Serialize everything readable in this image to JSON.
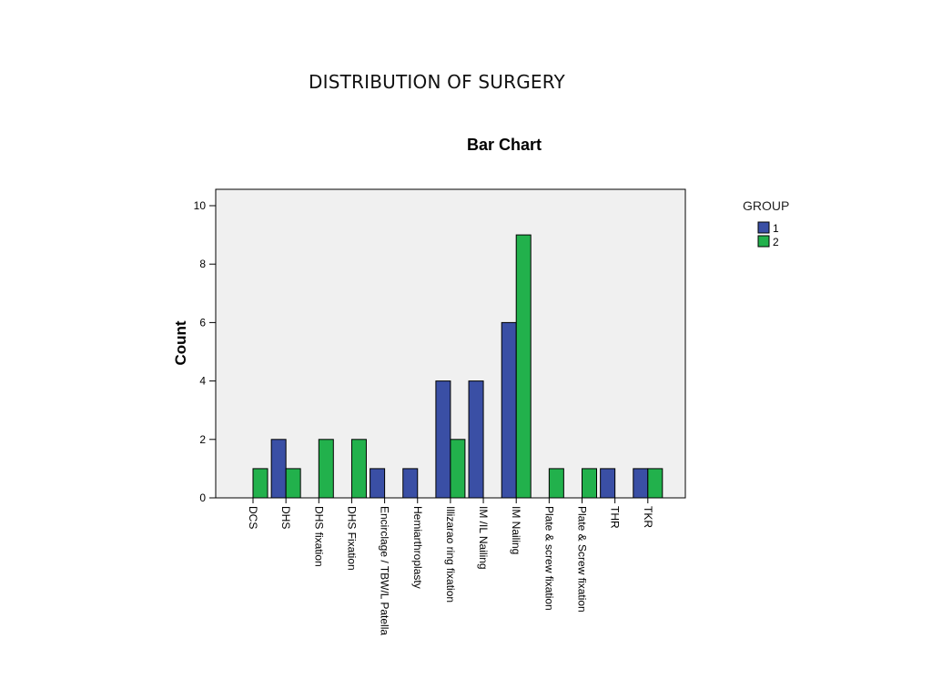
{
  "slide": {
    "title": "DISTRIBUTION OF SURGERY"
  },
  "colors": {
    "group1": "#3a4fa5",
    "group2": "#22b14c",
    "plot_bg": "#f0f0f0"
  },
  "chart_data": {
    "type": "bar",
    "title": "Bar Chart",
    "xlabel": "",
    "ylabel": "Count",
    "ylim": [
      0,
      10
    ],
    "yticks": [
      0,
      2,
      4,
      6,
      8,
      10
    ],
    "grid": false,
    "legend_title": "GROUP",
    "legend_position": "right",
    "categories": [
      "DCS",
      "DHS",
      "DHS fixation",
      "DHS Fixation",
      "Encirclage / TBW/L Patella",
      "Hemiarthroplasty",
      "Illizarao ring fixation",
      "IM /IL Nailing",
      "IM Nailing",
      "Plate & screw fixation",
      "Plate & Screw fixation",
      "THR",
      "TKR"
    ],
    "series": [
      {
        "name": "1",
        "values": [
          0,
          2,
          0,
          0,
          1,
          1,
          4,
          4,
          6,
          0,
          0,
          1,
          1
        ]
      },
      {
        "name": "2",
        "values": [
          1,
          1,
          2,
          2,
          0,
          0,
          2,
          0,
          9,
          1,
          1,
          0,
          1
        ]
      }
    ]
  }
}
